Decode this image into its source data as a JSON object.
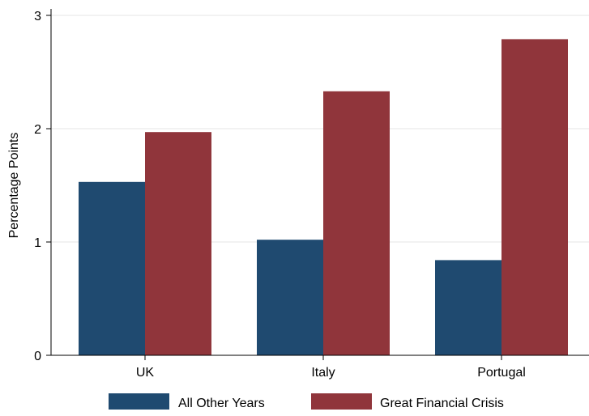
{
  "chart_data": {
    "type": "bar",
    "title": "",
    "xlabel": "",
    "ylabel": "Percentage Points",
    "ylim": [
      0,
      3
    ],
    "yticks": [
      0,
      1,
      2,
      3
    ],
    "grid": true,
    "legend_position": "bottom",
    "categories": [
      "UK",
      "Italy",
      "Portugal"
    ],
    "series": [
      {
        "name": "All Other Years",
        "values": [
          1.53,
          1.02,
          0.84
        ],
        "color": "#1f4a70"
      },
      {
        "name": "Great Financial Crisis",
        "values": [
          1.97,
          2.33,
          2.79
        ],
        "color": "#90353b"
      }
    ]
  }
}
